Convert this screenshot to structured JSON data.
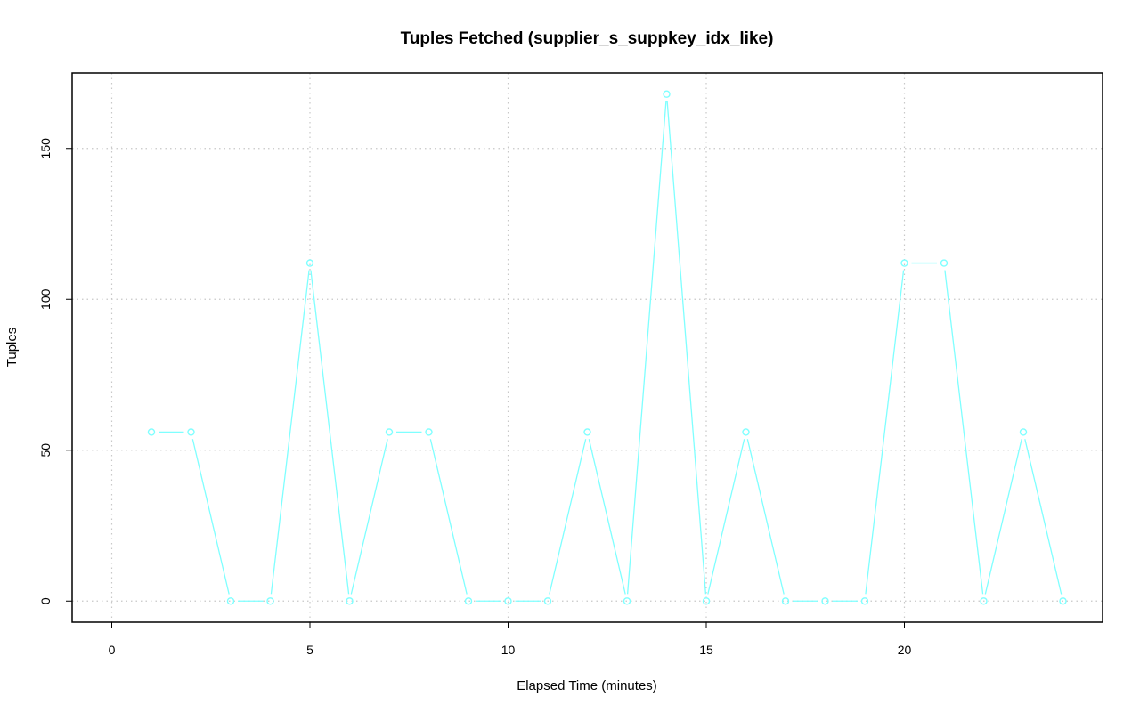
{
  "chart_data": {
    "type": "line",
    "title": "Tuples Fetched (supplier_s_suppkey_idx_like)",
    "xlabel": "Elapsed Time (minutes)",
    "ylabel": "Tuples",
    "xlim": [
      -1,
      25
    ],
    "ylim": [
      -7,
      175
    ],
    "xticks": [
      0,
      5,
      10,
      15,
      20
    ],
    "yticks": [
      0,
      50,
      100,
      150
    ],
    "grid": true,
    "series": [
      {
        "color": "#7fffff",
        "marker": "open-circle",
        "x": [
          1,
          2,
          3,
          4,
          5,
          6,
          7,
          8,
          9,
          10,
          11,
          12,
          13,
          14,
          15,
          16,
          17,
          18,
          19,
          20,
          21,
          22,
          23,
          24
        ],
        "y": [
          56,
          56,
          0,
          0,
          112,
          0,
          56,
          56,
          0,
          0,
          0,
          56,
          0,
          168,
          0,
          56,
          0,
          0,
          0,
          112,
          112,
          0,
          56,
          0
        ]
      }
    ]
  }
}
